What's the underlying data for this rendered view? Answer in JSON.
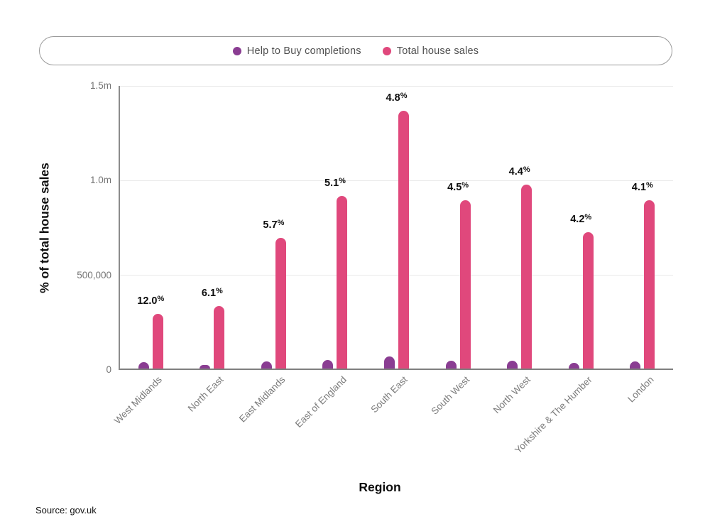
{
  "legend": {
    "items": [
      {
        "label": "Help to Buy completions",
        "color": "#8a3d92"
      },
      {
        "label": "Total house sales",
        "color": "#e0487c"
      }
    ]
  },
  "source": "Source: gov.uk",
  "chart_data": {
    "type": "bar",
    "title": "",
    "xlabel": "Region",
    "ylabel": "% of total house sales",
    "categories": [
      "West Midlands",
      "North East",
      "East Midlands",
      "East of England",
      "South East",
      "South West",
      "North West",
      "Yorkshire & The Humber",
      "London"
    ],
    "series": [
      {
        "name": "Help to Buy completions",
        "color": "#8a3d92",
        "values": [
          35000,
          20000,
          39000,
          46000,
          65000,
          40000,
          43000,
          30000,
          36000
        ]
      },
      {
        "name": "Total house sales",
        "color": "#e0487c",
        "values": [
          290000,
          330000,
          690000,
          910000,
          1360000,
          890000,
          970000,
          720000,
          890000
        ]
      }
    ],
    "bar_labels": [
      "12.0%",
      "6.1%",
      "5.7%",
      "5.1%",
      "4.8%",
      "4.5%",
      "4.4%",
      "4.2%",
      "4.1%"
    ],
    "ylim": [
      0,
      1500000
    ],
    "yticks": [
      {
        "value": 0,
        "label": "0"
      },
      {
        "value": 500000,
        "label": "500,000"
      },
      {
        "value": 1000000,
        "label": "1.0m"
      },
      {
        "value": 1500000,
        "label": "1.5m"
      }
    ],
    "grid": true,
    "legend_position": "top"
  }
}
